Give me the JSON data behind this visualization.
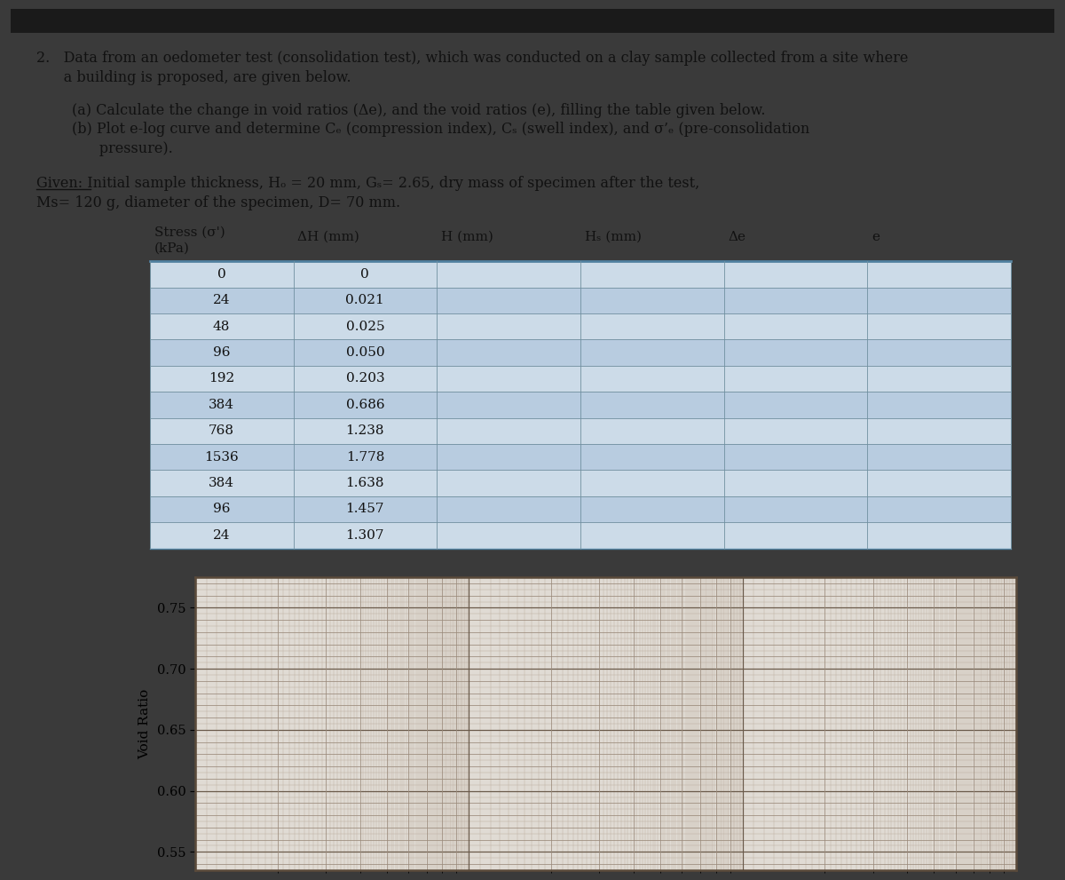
{
  "outer_bg": "#3a3a3a",
  "page_bg": "#d8d4ce",
  "dark_bar_color": "#1a1a1a",
  "text_color": "#111111",
  "title_line1": "2.   Data from an oedometer test (consolidation test), which was conducted on a clay sample collected from a site where",
  "title_line2": "      a building is proposed, are given below.",
  "part_a": "(a) Calculate the change in void ratios (Δe), and the void ratios (e), filling the table given below.",
  "part_b1": "(b) Plot e-log curve and determine Cₑ (compression index), Cₛ (swell index), and σ’ₑ (pre-consolidation",
  "part_b2": "      pressure).",
  "given1": "Given: Initial sample thickness, Hₒ = 20 mm, Gₛ= 2.65, dry mass of specimen after the test,",
  "given2": "Ms= 120 g, diameter of the specimen, D= 70 mm.",
  "table_col_headers": [
    "Stress (σ')\n(kPa)",
    "ΔH (mm)",
    "H (mm)",
    "Hₛ (mm)",
    "Δe",
    "e"
  ],
  "table_stress": [
    "0",
    "24",
    "48",
    "96",
    "192",
    "384",
    "768",
    "1536",
    "384",
    "96",
    "24"
  ],
  "table_dH": [
    "0",
    "0.021",
    "0.025",
    "0.050",
    "0.203",
    "0.686",
    "1.238",
    "1.778",
    "1.638",
    "1.457",
    "1.307"
  ],
  "table_header_bg": "#b8cfe0",
  "table_row_light": "#ccdbe8",
  "table_row_dark": "#b8cce0",
  "table_border": "#7090a0",
  "graph_bg": "#e0dbd4",
  "graph_grid_major": "#6a5a4a",
  "graph_grid_minor": "#9a8a7a",
  "graph_grid_sub": "#b8a898",
  "graph_border": "#5a4a3a",
  "graph_yticks": [
    0.55,
    0.6,
    0.65,
    0.7,
    0.75
  ],
  "graph_ylabel": "Void Ratio"
}
